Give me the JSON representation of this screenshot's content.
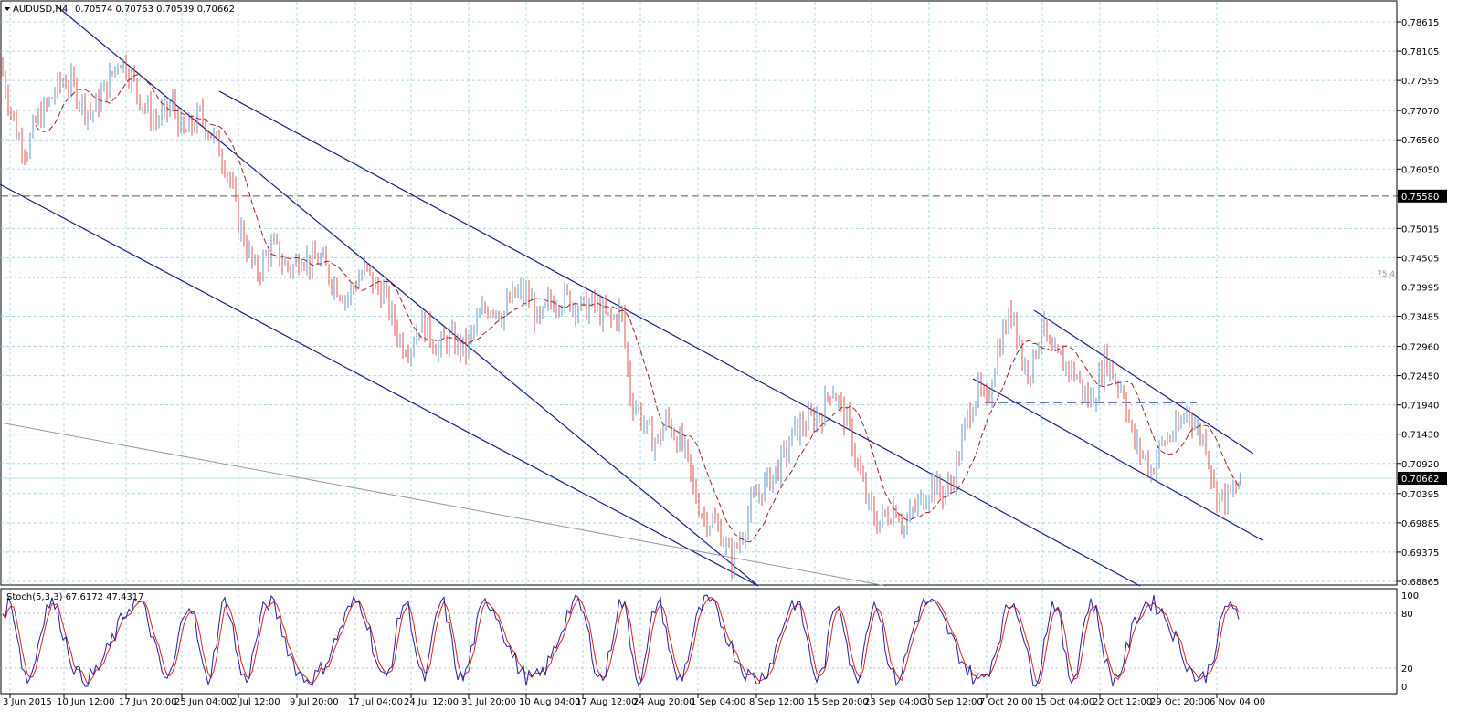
{
  "header": {
    "symbol_label": "AUDUSD,H4",
    "ohlc": "0.70574 0.70763 0.70539 0.70662"
  },
  "indicator_header": "Stoch(5,3,3) 67.6172 47.4317",
  "level_label": "75.4",
  "chart_data": [
    {
      "type": "candlestick",
      "symbol": "AUDUSD",
      "timeframe": "H4",
      "last_ohlc": {
        "open": 0.70574,
        "high": 0.70763,
        "low": 0.70539,
        "close": 0.70662
      },
      "current_price": "0.70662",
      "horizontal_level": "0.75580",
      "y_ticks": [
        "0.78615",
        "0.78105",
        "0.77595",
        "0.77070",
        "0.76560",
        "0.76050",
        "0.75580",
        "0.75015",
        "0.74505",
        "0.73995",
        "0.73485",
        "0.72960",
        "0.72450",
        "0.71940",
        "0.71430",
        "0.70920",
        "0.70662",
        "0.70395",
        "0.69885",
        "0.69375",
        "0.68865"
      ],
      "ylim": [
        0.68865,
        0.78815
      ],
      "x_ticks": [
        "3 Jun 2015",
        "10 Jun 12:00",
        "17 Jun 20:00",
        "25 Jun 04:00",
        "2 Jul 12:00",
        "9 Jul 20:00",
        "17 Jul 04:00",
        "24 Jul 12:00",
        "31 Jul 20:00",
        "10 Aug 04:00",
        "17 Aug 12:00",
        "24 Aug 20:00",
        "1 Sep 04:00",
        "8 Sep 12:00",
        "15 Sep 20:00",
        "23 Sep 04:00",
        "30 Sep 12:00",
        "7 Oct 20:00",
        "15 Oct 04:00",
        "22 Oct 12:00",
        "29 Oct 20:00",
        "6 Nov 04:00"
      ],
      "close_path": [
        [
          0,
          0.779
        ],
        [
          10,
          0.772
        ],
        [
          20,
          0.766
        ],
        [
          30,
          0.764
        ],
        [
          40,
          0.769
        ],
        [
          50,
          0.771
        ],
        [
          60,
          0.774
        ],
        [
          70,
          0.776
        ],
        [
          80,
          0.775
        ],
        [
          90,
          0.772
        ],
        [
          100,
          0.77
        ],
        [
          110,
          0.773
        ],
        [
          120,
          0.776
        ],
        [
          130,
          0.78
        ],
        [
          140,
          0.778
        ],
        [
          150,
          0.774
        ],
        [
          160,
          0.771
        ],
        [
          170,
          0.769
        ],
        [
          180,
          0.77
        ],
        [
          190,
          0.772
        ],
        [
          200,
          0.766
        ],
        [
          210,
          0.768
        ],
        [
          220,
          0.77
        ],
        [
          230,
          0.767
        ],
        [
          240,
          0.764
        ],
        [
          250,
          0.76
        ],
        [
          260,
          0.752
        ],
        [
          270,
          0.747
        ],
        [
          280,
          0.742
        ],
        [
          290,
          0.745
        ],
        [
          300,
          0.747
        ],
        [
          310,
          0.744
        ],
        [
          320,
          0.743
        ],
        [
          330,
          0.746
        ],
        [
          340,
          0.744
        ],
        [
          350,
          0.745
        ],
        [
          360,
          0.742
        ],
        [
          370,
          0.74
        ],
        [
          380,
          0.738
        ],
        [
          390,
          0.741
        ],
        [
          400,
          0.743
        ],
        [
          410,
          0.74
        ],
        [
          420,
          0.739
        ],
        [
          430,
          0.734
        ],
        [
          440,
          0.73
        ],
        [
          450,
          0.73
        ],
        [
          460,
          0.734
        ],
        [
          470,
          0.732
        ],
        [
          480,
          0.729
        ],
        [
          490,
          0.731
        ],
        [
          500,
          0.73
        ],
        [
          510,
          0.729
        ],
        [
          520,
          0.733
        ],
        [
          530,
          0.736
        ],
        [
          540,
          0.737
        ],
        [
          550,
          0.735
        ],
        [
          560,
          0.738
        ],
        [
          570,
          0.739
        ],
        [
          580,
          0.738
        ],
        [
          590,
          0.733
        ],
        [
          600,
          0.737
        ],
        [
          610,
          0.738
        ],
        [
          620,
          0.738
        ],
        [
          630,
          0.737
        ],
        [
          640,
          0.736
        ],
        [
          650,
          0.737
        ],
        [
          660,
          0.735
        ],
        [
          670,
          0.734
        ],
        [
          680,
          0.736
        ],
        [
          690,
          0.721
        ],
        [
          700,
          0.718
        ],
        [
          710,
          0.714
        ],
        [
          720,
          0.713
        ],
        [
          730,
          0.717
        ],
        [
          740,
          0.714
        ],
        [
          750,
          0.711
        ],
        [
          760,
          0.704
        ],
        [
          770,
          0.7
        ],
        [
          780,
          0.699
        ],
        [
          790,
          0.697
        ],
        [
          800,
          0.692
        ],
        [
          810,
          0.696
        ],
        [
          820,
          0.701
        ],
        [
          830,
          0.704
        ],
        [
          840,
          0.706
        ],
        [
          850,
          0.708
        ],
        [
          860,
          0.711
        ],
        [
          870,
          0.715
        ],
        [
          880,
          0.716
        ],
        [
          890,
          0.717
        ],
        [
          900,
          0.718
        ],
        [
          910,
          0.723
        ],
        [
          920,
          0.719
        ],
        [
          930,
          0.715
        ],
        [
          940,
          0.708
        ],
        [
          950,
          0.702
        ],
        [
          960,
          0.699
        ],
        [
          970,
          0.7
        ],
        [
          980,
          0.702
        ],
        [
          990,
          0.698
        ],
        [
          1000,
          0.701
        ],
        [
          1010,
          0.703
        ],
        [
          1020,
          0.706
        ],
        [
          1030,
          0.704
        ],
        [
          1040,
          0.705
        ],
        [
          1050,
          0.711
        ],
        [
          1060,
          0.718
        ],
        [
          1070,
          0.722
        ],
        [
          1080,
          0.719
        ],
        [
          1090,
          0.728
        ],
        [
          1100,
          0.733
        ],
        [
          1110,
          0.736
        ],
        [
          1120,
          0.726
        ],
        [
          1130,
          0.726
        ],
        [
          1140,
          0.734
        ],
        [
          1150,
          0.728
        ],
        [
          1160,
          0.727
        ],
        [
          1170,
          0.726
        ],
        [
          1180,
          0.724
        ],
        [
          1190,
          0.72
        ],
        [
          1200,
          0.722
        ],
        [
          1210,
          0.728
        ],
        [
          1220,
          0.724
        ],
        [
          1230,
          0.722
        ],
        [
          1240,
          0.713
        ],
        [
          1250,
          0.711
        ],
        [
          1260,
          0.708
        ],
        [
          1270,
          0.712
        ],
        [
          1280,
          0.714
        ],
        [
          1290,
          0.715
        ],
        [
          1300,
          0.719
        ],
        [
          1310,
          0.715
        ],
        [
          1320,
          0.713
        ],
        [
          1330,
          0.704
        ],
        [
          1340,
          0.703
        ],
        [
          1350,
          0.704
        ],
        [
          1360,
          0.7066
        ]
      ]
    },
    {
      "type": "line",
      "name": "Stoch(5,3,3)",
      "values_text": "67.6172 47.4317",
      "y_ticks": [
        "100",
        "80",
        "20",
        "0"
      ],
      "ylim": [
        0,
        100
      ]
    }
  ],
  "colors": {
    "bull": "#6699cc",
    "bear": "#e8504c",
    "ma": "#a02020",
    "channel": "#1a1a8a",
    "grid": "#a8d8e8",
    "stoch_main": "#2020a0",
    "stoch_signal": "#e02020"
  }
}
